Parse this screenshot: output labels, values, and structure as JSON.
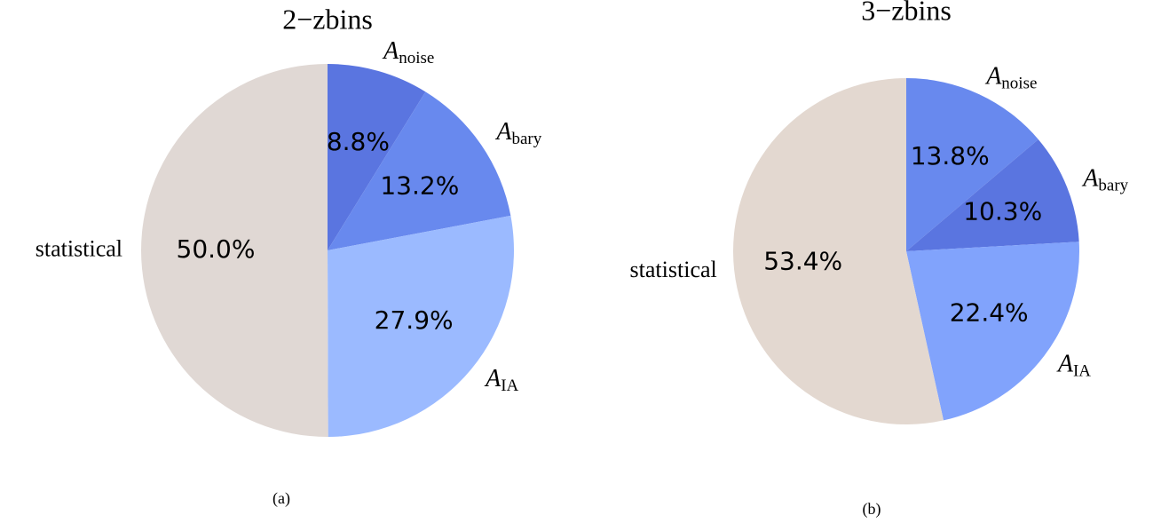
{
  "chart_data": [
    {
      "type": "pie",
      "title": "2−zbins",
      "caption": "(a)",
      "categories": [
        {
          "symbol": "A",
          "subscript": "noise"
        },
        {
          "symbol": "A",
          "subscript": "bary"
        },
        {
          "symbol": "A",
          "subscript": "IA"
        },
        "statistical"
      ],
      "values": [
        8.8,
        13.2,
        27.9,
        50.0
      ],
      "value_labels": [
        "8.8%",
        "13.2%",
        "27.9%",
        "50.0%"
      ],
      "colors": [
        "#5a75e0",
        "#6889ee",
        "#9bbaff",
        "#e0d8d4"
      ]
    },
    {
      "type": "pie",
      "title": "3−zbins",
      "caption": "(b)",
      "categories": [
        {
          "symbol": "A",
          "subscript": "noise"
        },
        {
          "symbol": "A",
          "subscript": "bary"
        },
        {
          "symbol": "A",
          "subscript": "IA"
        },
        "statistical"
      ],
      "values": [
        13.8,
        10.3,
        22.4,
        53.4
      ],
      "value_labels": [
        "13.8%",
        "10.3%",
        "22.4%",
        "53.4%"
      ],
      "colors": [
        "#6889ee",
        "#5a75e0",
        "#81a3fc",
        "#e3d8d0"
      ]
    }
  ]
}
